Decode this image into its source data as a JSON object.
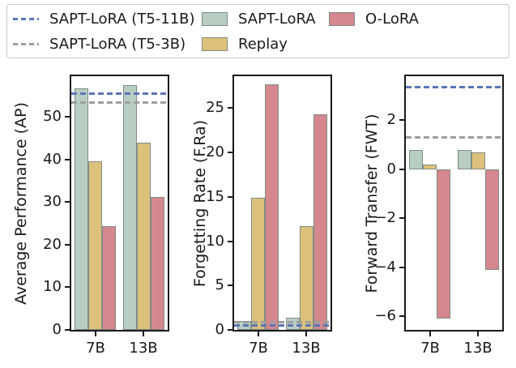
{
  "legend": {
    "items": [
      {
        "label": "SAPT-LoRA (T5-11B)",
        "swatch": "dashed-line",
        "color_key": "t5_11b"
      },
      {
        "label": "SAPT-LoRA (T5-3B)",
        "swatch": "dashed-line",
        "color_key": "t5_3b"
      },
      {
        "label": "SAPT-LoRA",
        "swatch": "patch",
        "color_key": "sapt"
      },
      {
        "label": "Replay",
        "swatch": "patch",
        "color_key": "replay"
      },
      {
        "label": "O-LoRA",
        "swatch": "patch",
        "color_key": "olora"
      }
    ]
  },
  "colors": {
    "sapt": "#b9cec3",
    "replay": "#ddc17b",
    "olora": "#d5878d",
    "t5_11b": "#5b76b7",
    "t5_3b": "#9e9e9e",
    "bar_edge": "#7f8c85",
    "axis": "#1a1a1a"
  },
  "chart_data": [
    {
      "type": "bar",
      "title": "",
      "ylabel": "Average Performance (AP)",
      "xlabel": "",
      "categories": [
        "7B",
        "13B"
      ],
      "series": [
        {
          "name": "SAPT-LoRA",
          "color_key": "sapt",
          "values": [
            56.6,
            57.4
          ]
        },
        {
          "name": "Replay",
          "color_key": "replay",
          "values": [
            39.5,
            44.0
          ]
        },
        {
          "name": "O-LoRA",
          "color_key": "olora",
          "values": [
            24.3,
            31.2
          ]
        }
      ],
      "hlines": [
        {
          "name": "SAPT-LoRA (T5-11B)",
          "value": 55.4,
          "color_key": "t5_11b"
        },
        {
          "name": "SAPT-LoRA (T5-3B)",
          "value": 53.3,
          "color_key": "t5_3b"
        }
      ],
      "ylim": [
        0,
        59.5
      ],
      "yticks": [
        0,
        10,
        20,
        30,
        40,
        50
      ],
      "grid": false,
      "legend_position": "top"
    },
    {
      "type": "bar",
      "title": "",
      "ylabel": "Forgetting Rate (F.Ra)",
      "xlabel": "",
      "categories": [
        "7B",
        "13B"
      ],
      "series": [
        {
          "name": "SAPT-LoRA",
          "color_key": "sapt",
          "values": [
            1.0,
            1.4
          ]
        },
        {
          "name": "Replay",
          "color_key": "replay",
          "values": [
            14.9,
            11.7
          ]
        },
        {
          "name": "O-LoRA",
          "color_key": "olora",
          "values": [
            27.7,
            24.3
          ]
        }
      ],
      "hlines": [
        {
          "name": "SAPT-LoRA (T5-11B)",
          "value": 0.5,
          "color_key": "t5_11b"
        },
        {
          "name": "SAPT-LoRA (T5-3B)",
          "value": 0.85,
          "color_key": "t5_3b"
        }
      ],
      "ylim": [
        0,
        28.6
      ],
      "yticks": [
        0,
        5,
        10,
        15,
        20,
        25
      ],
      "grid": false,
      "legend_position": "top"
    },
    {
      "type": "bar",
      "title": "",
      "ylabel": "Forward Transfer (FWT)",
      "xlabel": "",
      "categories": [
        "7B",
        "13B"
      ],
      "series": [
        {
          "name": "SAPT-LoRA",
          "color_key": "sapt",
          "values": [
            0.8,
            0.8
          ]
        },
        {
          "name": "Replay",
          "color_key": "replay",
          "values": [
            0.2,
            0.7
          ]
        },
        {
          "name": "O-LoRA",
          "color_key": "olora",
          "values": [
            -6.1,
            -4.1
          ]
        }
      ],
      "hlines": [
        {
          "name": "SAPT-LoRA (T5-11B)",
          "value": 3.35,
          "color_key": "t5_11b"
        },
        {
          "name": "SAPT-LoRA (T5-3B)",
          "value": 1.3,
          "color_key": "t5_3b"
        }
      ],
      "ylim": [
        -6.55,
        3.8
      ],
      "yticks": [
        2,
        0,
        -2,
        -4,
        -6
      ],
      "grid": false,
      "legend_position": "top"
    }
  ]
}
